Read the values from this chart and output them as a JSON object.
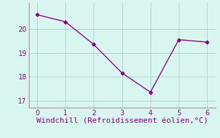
{
  "x": [
    0,
    1,
    2,
    3,
    4,
    5,
    6
  ],
  "y": [
    20.6,
    20.3,
    19.35,
    18.15,
    17.35,
    19.55,
    19.45
  ],
  "line_color": "#880088",
  "marker": "D",
  "marker_size": 2.5,
  "line_width": 1,
  "xlabel": "Windchill (Refroidissement éolien,°C)",
  "xlabel_color": "#880088",
  "xlabel_fontsize": 8,
  "bg_color": "#d8f5f0",
  "grid_color": "#aacccc",
  "spine_color": "#999999",
  "tick_label_color": "#880088",
  "xlim": [
    -0.3,
    6.3
  ],
  "ylim": [
    16.7,
    21.1
  ],
  "yticks": [
    17,
    18,
    19,
    20
  ],
  "xticks": [
    0,
    1,
    2,
    3,
    4,
    5,
    6
  ]
}
